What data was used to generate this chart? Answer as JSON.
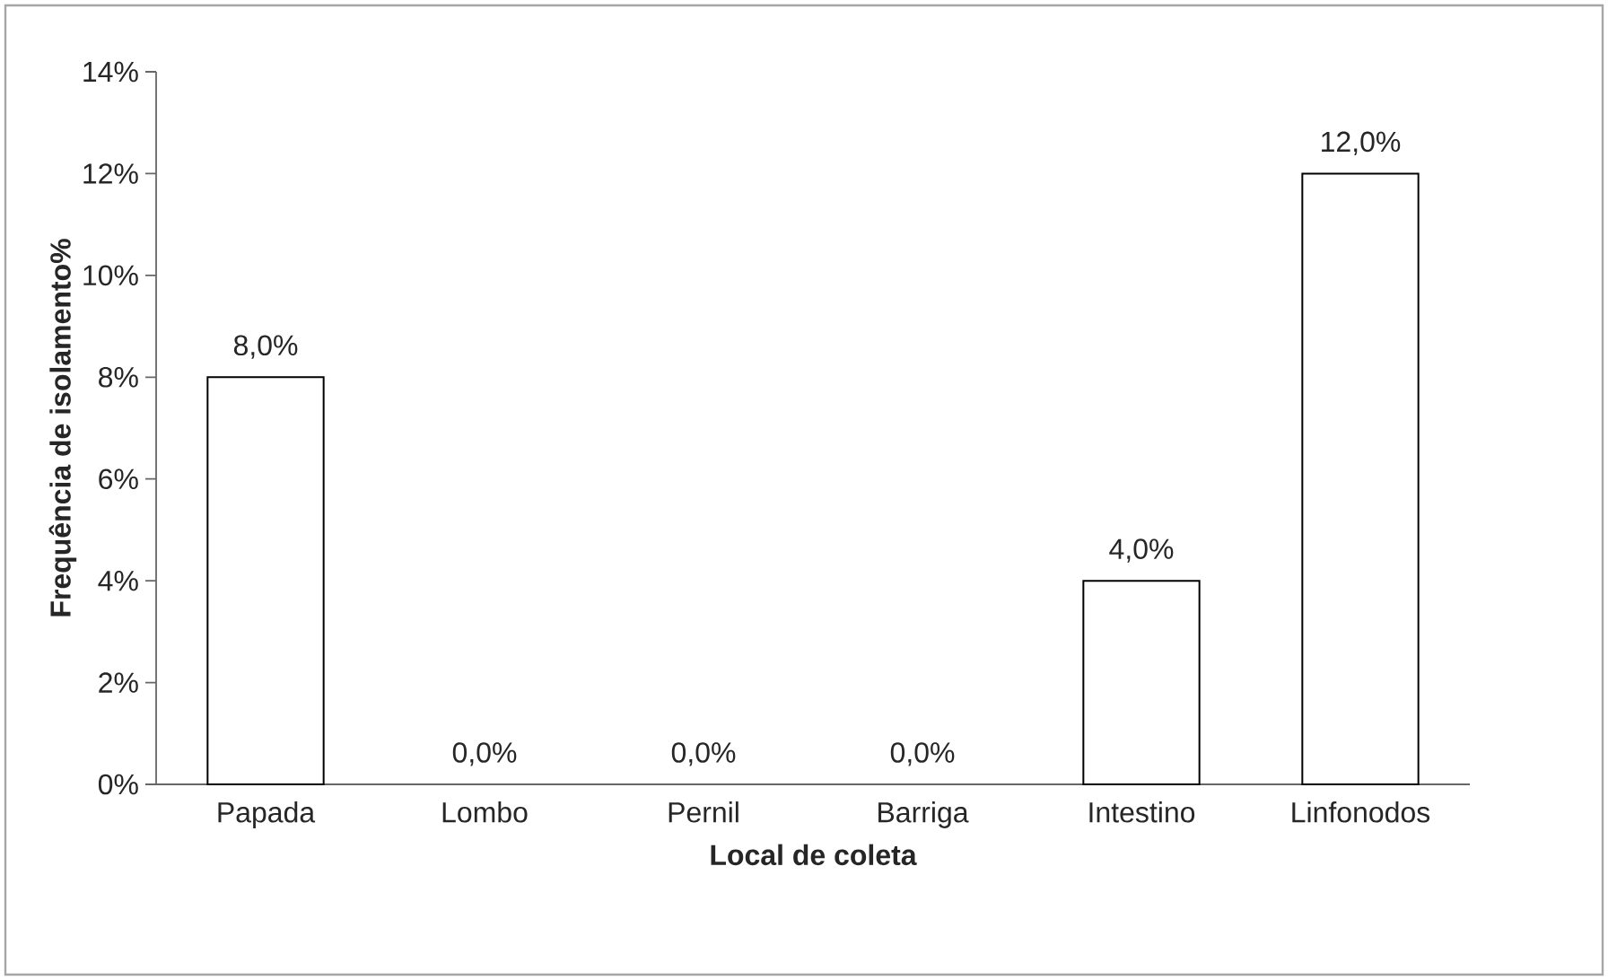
{
  "chart_data": {
    "type": "bar",
    "xlabel": "Local de coleta",
    "ylabel": "Frequência de isolamento%",
    "categories": [
      "Papada",
      "Lombo",
      "Pernil",
      "Barriga",
      "Intestino",
      "Linfonodos"
    ],
    "values": [
      8,
      0,
      0,
      0,
      4,
      12
    ],
    "value_labels": [
      "8,0%",
      "0,0%",
      "0,0%",
      "0,0%",
      "4,0%",
      "12,0%"
    ],
    "color": "#ffffff",
    "ylim": [
      0,
      14
    ],
    "yticks": [
      {
        "value": 0,
        "label": "0%"
      },
      {
        "value": 2,
        "label": "2%"
      },
      {
        "value": 4,
        "label": "4%"
      },
      {
        "value": 6,
        "label": "6%"
      },
      {
        "value": 8,
        "label": "8%"
      },
      {
        "value": 10,
        "label": "10%"
      },
      {
        "value": 12,
        "label": "12%"
      },
      {
        "value": 14,
        "label": "14%"
      }
    ]
  }
}
